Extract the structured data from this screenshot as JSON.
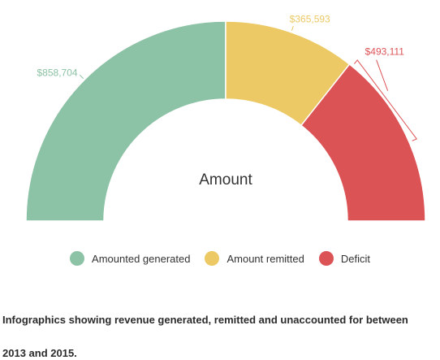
{
  "chart_data": {
    "type": "pie",
    "variant": "semi-donut",
    "center_label": "Amount",
    "slices": [
      {
        "name": "Amounted generated",
        "value": 858704,
        "label": "$858,704",
        "color": "#8cc2a5"
      },
      {
        "name": "Amount remitted",
        "value": 365593,
        "label": "$365,593",
        "color": "#ecc964"
      },
      {
        "name": "Deficit",
        "value": 493111,
        "label": "$493,111",
        "color": "#dc5356"
      }
    ],
    "legend_position": "bottom"
  },
  "caption": {
    "line1": "Infographics showing revenue generated, remitted and unaccounted for between",
    "line2": "2013 and 2015."
  }
}
